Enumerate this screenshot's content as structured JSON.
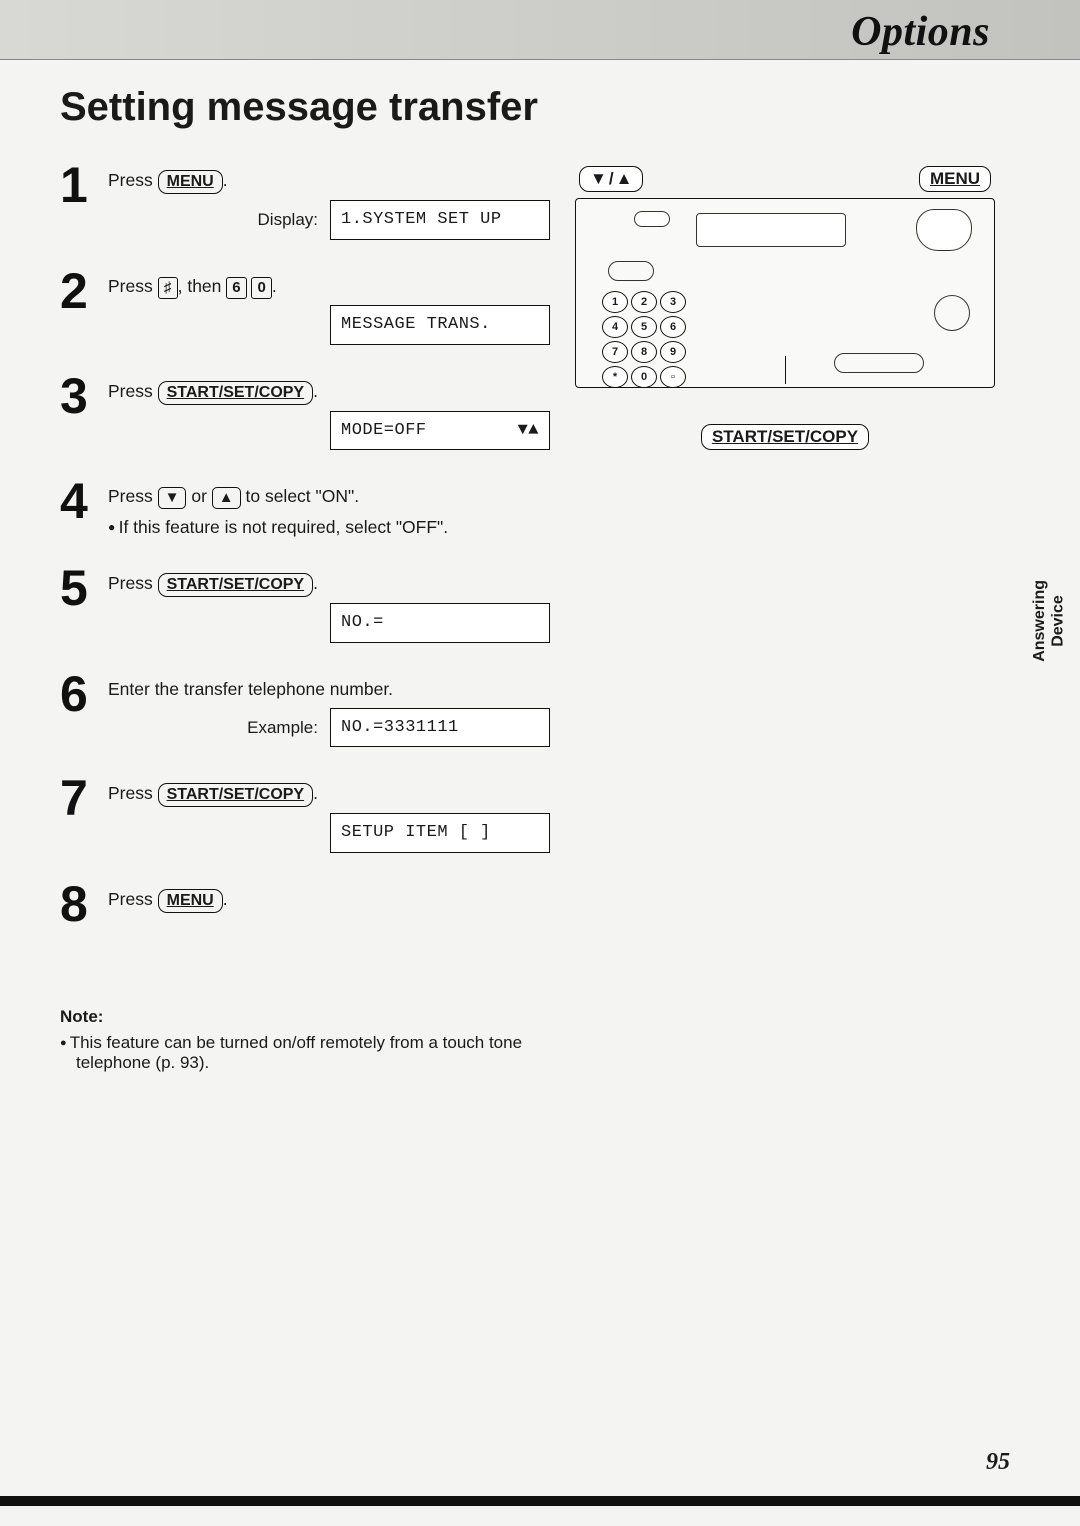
{
  "header": {
    "section": "Options"
  },
  "title": "Setting message transfer",
  "buttons": {
    "menu": "MENU",
    "start_set_copy": "START/SET/COPY",
    "hash": "♯",
    "k6": "6",
    "k0": "0",
    "down": "▼",
    "up": "▲"
  },
  "steps": [
    {
      "num": "1",
      "text_parts": [
        "Press ",
        {
          "btn": "menu"
        },
        "."
      ],
      "display_label": "Display:",
      "display_text": "1.SYSTEM SET UP"
    },
    {
      "num": "2",
      "text_parts": [
        "Press ",
        {
          "key": "hash"
        },
        ", then ",
        {
          "key": "k6"
        },
        " ",
        {
          "key": "k0"
        },
        "."
      ],
      "display_text": "MESSAGE TRANS."
    },
    {
      "num": "3",
      "text_parts": [
        "Press ",
        {
          "btn": "start_set_copy"
        },
        "."
      ],
      "display_text": "MODE=OFF",
      "display_arrows": "▼▲"
    },
    {
      "num": "4",
      "text_parts": [
        "Press ",
        {
          "arrow": "down"
        },
        " or ",
        {
          "arrow": "up"
        },
        " to select \"ON\"."
      ],
      "sub_bullet": "If this feature is not required, select \"OFF\"."
    },
    {
      "num": "5",
      "text_parts": [
        "Press ",
        {
          "btn": "start_set_copy"
        },
        "."
      ],
      "display_text": "NO.="
    },
    {
      "num": "6",
      "text_plain": "Enter the transfer telephone number.",
      "display_label": "Example:",
      "display_text": "NO.=3331111"
    },
    {
      "num": "7",
      "text_parts": [
        "Press ",
        {
          "btn": "start_set_copy"
        },
        "."
      ],
      "display_text": "SETUP ITEM [  ]"
    },
    {
      "num": "8",
      "text_parts": [
        "Press ",
        {
          "btn": "menu"
        },
        "."
      ]
    }
  ],
  "device": {
    "top_left_label": "▼ / ▲",
    "top_right_label": "MENU",
    "bottom_label": "START/SET/COPY",
    "keys": [
      "1",
      "2",
      "3",
      "4",
      "5",
      "6",
      "7",
      "8",
      "9",
      "*",
      "0",
      "▫"
    ]
  },
  "note": {
    "heading": "Note:",
    "item": "This feature can be turned on/off remotely from a touch tone telephone (p. 93)."
  },
  "side_tab": "Answering\nDevice",
  "page_number": "95"
}
